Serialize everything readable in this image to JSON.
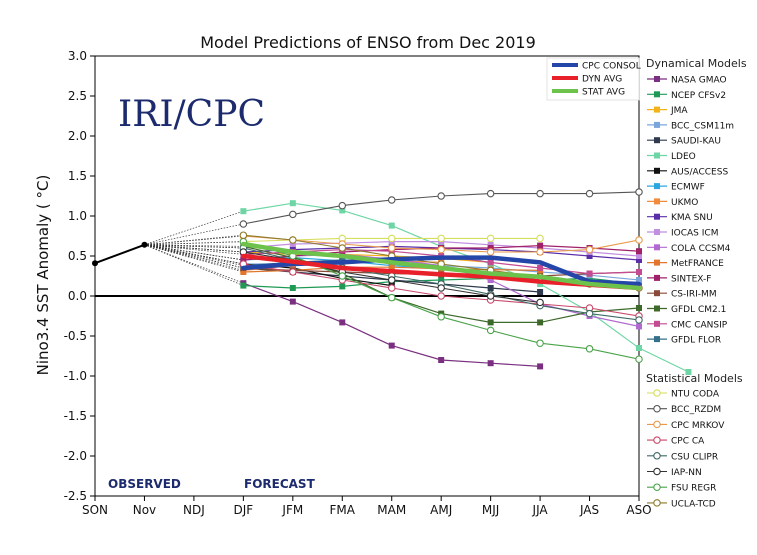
{
  "chart_data": {
    "type": "line",
    "title": "Model Predictions of ENSO from Dec 2019",
    "watermark": "IRI/CPC",
    "xlabel": "",
    "ylabel": "Nino3.4 SST Anomaly ( °C)",
    "categories": [
      "SON",
      "Nov",
      "NDJ",
      "DJF",
      "JFM",
      "FMA",
      "MAM",
      "AMJ",
      "MJJ",
      "JJA",
      "JAS",
      "ASO"
    ],
    "ylim": [
      -2.5,
      3.0
    ],
    "yticks": [
      "-2.5",
      "-2.0",
      "-1.5",
      "-1.0",
      "-0.5",
      "0.0",
      "0.5",
      "1.0",
      "1.5",
      "2.0",
      "2.5",
      "3.0"
    ],
    "observed_label": "OBSERVED",
    "forecast_label": "FORECAST",
    "observed": {
      "name": "Observed",
      "color": "#000000",
      "values": [
        0.41,
        0.64
      ]
    },
    "summary_legend": [
      {
        "name": "CPC CONSOL",
        "color": "#2346a8"
      },
      {
        "name": "DYN AVG",
        "color": "#e8202a"
      },
      {
        "name": "STAT AVG",
        "color": "#6cc24a"
      }
    ],
    "summary_series": [
      {
        "name": "CPC CONSOL",
        "color": "#2346a8",
        "start": 3,
        "values": [
          0.35,
          0.4,
          0.42,
          0.46,
          0.48,
          0.48,
          0.42,
          0.18,
          0.15
        ]
      },
      {
        "name": "DYN AVG",
        "color": "#e8202a",
        "start": 3,
        "values": [
          0.5,
          0.43,
          0.35,
          0.31,
          0.27,
          0.24,
          0.18,
          0.14,
          0.1
        ]
      },
      {
        "name": "STAT AVG",
        "color": "#6cc24a",
        "start": 3,
        "values": [
          0.65,
          0.55,
          0.5,
          0.42,
          0.35,
          0.28,
          0.24,
          0.15,
          0.1
        ]
      }
    ],
    "dynamical_title": "Dynamical Models",
    "dynamical_models": [
      {
        "name": "NASA GMAO",
        "color": "#7a2f80",
        "start": 3,
        "values": [
          0.16,
          -0.07,
          -0.33,
          -0.62,
          -0.8,
          -0.84,
          -0.88
        ]
      },
      {
        "name": "NCEP CFSv2",
        "color": "#1f9a55",
        "start": 3,
        "values": [
          0.13,
          0.1,
          0.12,
          0.18,
          0.2,
          0.22,
          0.2,
          0.22,
          0.15
        ]
      },
      {
        "name": "JMA",
        "color": "#f3b21b",
        "start": 3,
        "values": [
          0.55,
          0.52,
          0.52,
          0.5,
          0.47,
          0.42
        ]
      },
      {
        "name": "BCC_CSM11m",
        "color": "#7aa6dc",
        "start": 3,
        "values": [
          0.4,
          0.4,
          0.45,
          0.42,
          0.38,
          0.35,
          0.3,
          0.26,
          0.2
        ]
      },
      {
        "name": "SAUDI-KAU",
        "color": "#2f3a4f",
        "start": 3,
        "values": [
          0.35,
          0.3,
          0.25,
          0.2,
          0.15,
          0.1,
          0.05
        ]
      },
      {
        "name": "LDEO",
        "color": "#6ed6a4",
        "start": 3,
        "values": [
          1.06,
          1.16,
          1.07,
          0.88,
          0.62,
          0.4,
          0.15,
          -0.2,
          -0.65,
          -0.95
        ]
      },
      {
        "name": "AUS/ACCESS",
        "color": "#111111",
        "start": 3,
        "values": [
          0.4,
          0.35,
          0.22,
          0.13
        ]
      },
      {
        "name": "ECMWF",
        "color": "#2aa7e0",
        "start": 3,
        "values": [
          0.45,
          0.48,
          0.44,
          0.38,
          0.34
        ]
      },
      {
        "name": "UKMO",
        "color": "#f08a3c",
        "start": 3,
        "values": [
          0.32,
          0.38,
          0.42,
          0.44,
          0.42
        ]
      },
      {
        "name": "KMA SNU",
        "color": "#5a2ea8",
        "start": 3,
        "values": [
          0.55,
          0.58,
          0.6,
          0.62,
          0.6,
          0.58,
          0.55,
          0.5,
          0.45
        ]
      },
      {
        "name": "IOCAS ICM",
        "color": "#c18ee0",
        "start": 3,
        "values": [
          0.6,
          0.65,
          0.66,
          0.68,
          0.68,
          0.64,
          0.6,
          0.55,
          0.5
        ]
      },
      {
        "name": "COLA CCSM4",
        "color": "#b06ad0",
        "start": 3,
        "values": [
          0.45,
          0.5,
          0.52,
          0.46,
          0.38,
          0.2,
          -0.1,
          -0.25,
          -0.38
        ]
      },
      {
        "name": "MetFRANCE",
        "color": "#e2762c",
        "start": 3,
        "values": [
          0.3,
          0.32,
          0.36,
          0.36,
          0.34,
          0.33,
          0.32
        ]
      },
      {
        "name": "SINTEX-F",
        "color": "#a0206a",
        "start": 3,
        "values": [
          0.45,
          0.5,
          0.55,
          0.58,
          0.6,
          0.6,
          0.63,
          0.6,
          0.56
        ]
      },
      {
        "name": "CS-IRI-MM",
        "color": "#8a4a3a",
        "start": 3,
        "values": [
          0.35,
          0.32,
          0.3,
          0.28,
          0.27,
          0.25,
          0.25,
          0.28,
          0.3
        ]
      },
      {
        "name": "GFDL CM2.1",
        "color": "#3d6a2b",
        "start": 3,
        "values": [
          0.62,
          0.48,
          0.28,
          -0.02,
          -0.22,
          -0.33,
          -0.33,
          -0.2,
          -0.15
        ]
      },
      {
        "name": "CMC CANSIP",
        "color": "#c44a92",
        "start": 3,
        "values": [
          0.52,
          0.55,
          0.58,
          0.56,
          0.5,
          0.42,
          0.35,
          0.28,
          0.3
        ]
      },
      {
        "name": "GFDL FLOR",
        "color": "#34708a",
        "start": 3,
        "values": [
          0.38,
          0.42,
          0.45,
          0.43,
          0.36,
          0.28,
          0.2,
          0.15,
          0.12
        ]
      }
    ],
    "statistical_title": "Statistical Models",
    "statistical_models": [
      {
        "name": "NTU CODA",
        "color": "#d6de5a",
        "start": 3,
        "values": [
          0.68,
          0.7,
          0.72,
          0.72,
          0.72,
          0.72,
          0.72
        ]
      },
      {
        "name": "BCC_RZDM",
        "color": "#555555",
        "start": 3,
        "values": [
          0.9,
          1.02,
          1.13,
          1.2,
          1.25,
          1.28,
          1.28,
          1.28,
          1.3
        ]
      },
      {
        "name": "CPC MRKOV",
        "color": "#e89a4a",
        "start": 3,
        "values": [
          0.75,
          0.7,
          0.65,
          0.6,
          0.58,
          0.55,
          0.55,
          0.58,
          0.7
        ]
      },
      {
        "name": "CPC CA",
        "color": "#c8486a",
        "start": 3,
        "values": [
          0.4,
          0.3,
          0.2,
          0.1,
          0.0,
          -0.05,
          -0.1,
          -0.15,
          -0.25
        ]
      },
      {
        "name": "CSU CLIPR",
        "color": "#3f6a66",
        "start": 3,
        "values": [
          0.6,
          0.45,
          0.35,
          0.25,
          0.15,
          0.02,
          -0.12,
          -0.22,
          -0.3
        ]
      },
      {
        "name": "IAP-NN",
        "color": "#333333",
        "start": 3,
        "values": [
          0.55,
          0.45,
          0.3,
          0.2,
          0.1,
          0.0,
          -0.08
        ]
      },
      {
        "name": "FSU REGR",
        "color": "#4aa34a",
        "start": 3,
        "values": [
          0.68,
          0.5,
          0.25,
          -0.02,
          -0.26,
          -0.43,
          -0.59,
          -0.66,
          -0.79
        ]
      },
      {
        "name": "UCLA-TCD",
        "color": "#8e7a2a",
        "start": 3,
        "values": [
          0.76,
          0.7,
          0.6,
          0.5,
          0.4,
          0.32,
          0.24,
          0.15,
          0.1
        ]
      }
    ],
    "grid": false,
    "legend_placement": "right"
  }
}
